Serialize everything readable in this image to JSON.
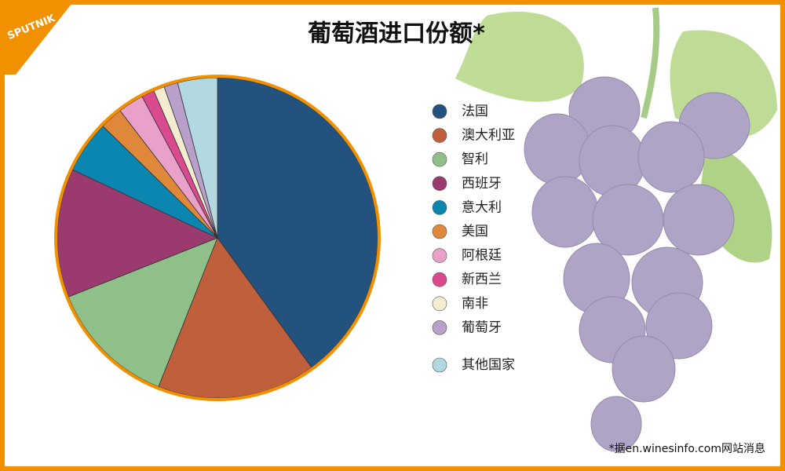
{
  "logo": "SPUTNIK",
  "source": "*据en.winesinfo.com网站消息",
  "chart_data": {
    "type": "pie",
    "title": "葡萄酒进口份额*",
    "categories": [
      "法国",
      "澳大利亚",
      "智利",
      "西班牙",
      "意大利",
      "美国",
      "阿根廷",
      "新西兰",
      "南非",
      "葡萄牙",
      "其他国家"
    ],
    "values": [
      40,
      16,
      13,
      13,
      5.3,
      2.3,
      2.6,
      1.3,
      1.1,
      1.4,
      4
    ],
    "colors": [
      "#23527f",
      "#c05f3c",
      "#8fc08a",
      "#9b3a6f",
      "#0b86b0",
      "#e0883a",
      "#e9a0c9",
      "#d94b8e",
      "#f3ecd0",
      "#b9a0ca",
      "#b2d8e1"
    ]
  }
}
